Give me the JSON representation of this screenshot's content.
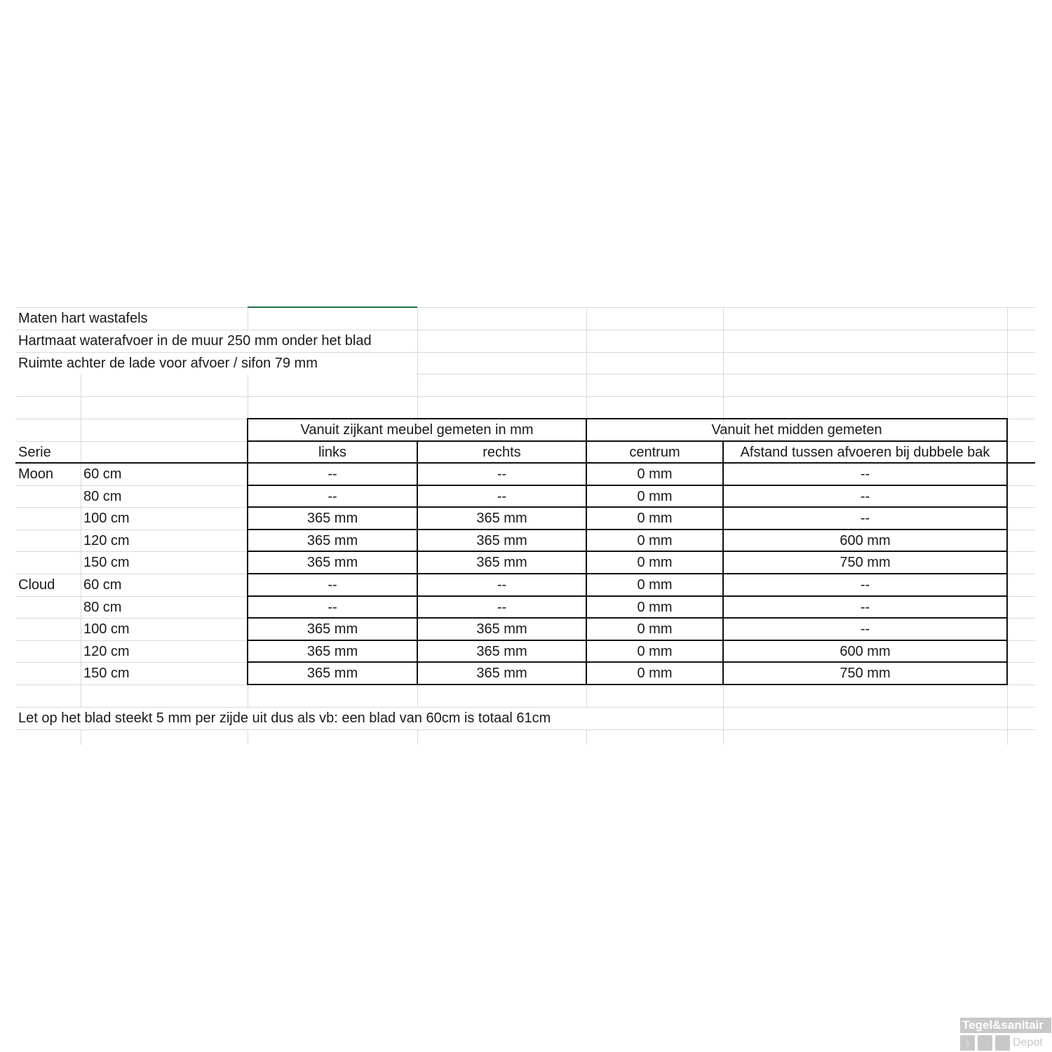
{
  "sheet": {
    "title": "Maten hart  wastafels",
    "line2": "Hartmaat waterafvoer in de muur 250 mm onder het blad",
    "line3": "Ruimte achter de lade voor afvoer / sifon 79 mm",
    "note": "Let op het blad steekt 5 mm per zijde uit dus als vb: een blad van 60cm is totaal 61cm"
  },
  "table": {
    "group_headers": [
      "Vanuit zijkant meubel gemeten in mm",
      "Vanuit het midden gemeten"
    ],
    "serie_label": "Serie",
    "columns": [
      "links",
      "rechts",
      "centrum",
      "Afstand tussen afvoeren bij dubbele bak"
    ],
    "rows": [
      {
        "serie": "Moon",
        "size": "60 cm",
        "links": "--",
        "rechts": "--",
        "centrum": "0 mm",
        "afstand": "--"
      },
      {
        "serie": "",
        "size": "80 cm",
        "links": "--",
        "rechts": "--",
        "centrum": "0 mm",
        "afstand": "--"
      },
      {
        "serie": "",
        "size": "100 cm",
        "links": "365 mm",
        "rechts": "365 mm",
        "centrum": "0 mm",
        "afstand": "--"
      },
      {
        "serie": "",
        "size": "120 cm",
        "links": "365 mm",
        "rechts": "365 mm",
        "centrum": "0 mm",
        "afstand": "600 mm"
      },
      {
        "serie": "",
        "size": "150 cm",
        "links": "365 mm",
        "rechts": "365 mm",
        "centrum": "0 mm",
        "afstand": "750 mm"
      },
      {
        "serie": "Cloud",
        "size": "60 cm",
        "links": "--",
        "rechts": "--",
        "centrum": "0 mm",
        "afstand": "--"
      },
      {
        "serie": "",
        "size": "80 cm",
        "links": "--",
        "rechts": "--",
        "centrum": "0 mm",
        "afstand": "--"
      },
      {
        "serie": "",
        "size": "100 cm",
        "links": "365 mm",
        "rechts": "365 mm",
        "centrum": "0 mm",
        "afstand": "--"
      },
      {
        "serie": "",
        "size": "120 cm",
        "links": "365 mm",
        "rechts": "365 mm",
        "centrum": "0 mm",
        "afstand": "600 mm"
      },
      {
        "serie": "",
        "size": "150 cm",
        "links": "365 mm",
        "rechts": "365 mm",
        "centrum": "0 mm",
        "afstand": "750 mm"
      }
    ]
  },
  "watermark": {
    "line1": "Tegel&sanitair",
    "line2": "Depot",
    "icon": "water-drop-icon"
  },
  "colors": {
    "gridline": "#d9d9d9",
    "selection": "#217346",
    "border": "#111111"
  }
}
